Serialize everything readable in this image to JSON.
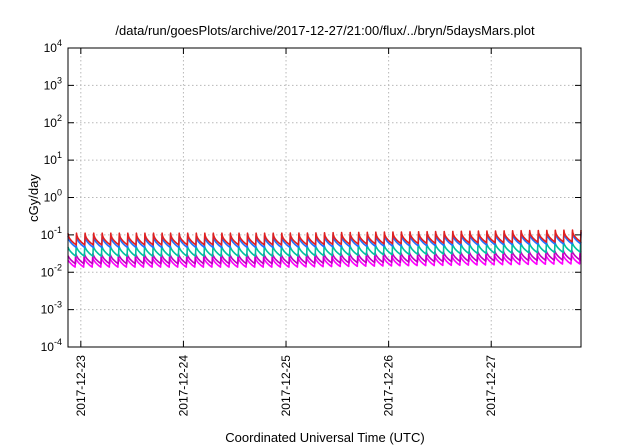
{
  "chart_data": {
    "type": "line",
    "title": "/data/run/goesPlots/archive/2017-12-27/21:00/flux/../bryn/5daysMars.plot",
    "xlabel": "Coordinated Universal Time (UTC)",
    "ylabel": "cGy/day",
    "yscale": "log",
    "ylim": [
      0.0001,
      10000
    ],
    "xlim": [
      "2017-12-22T21:00",
      "2017-12-27T21:00"
    ],
    "grid": true,
    "legend": "none",
    "y_ticks": [
      {
        "base": "10",
        "exp": "4",
        "value": 10000
      },
      {
        "base": "10",
        "exp": "3",
        "value": 1000
      },
      {
        "base": "10",
        "exp": "2",
        "value": 100
      },
      {
        "base": "10",
        "exp": "1",
        "value": 10
      },
      {
        "base": "10",
        "exp": "0",
        "value": 1
      },
      {
        "base": "10",
        "exp": "-1",
        "value": 0.1
      },
      {
        "base": "10",
        "exp": "-2",
        "value": 0.01
      },
      {
        "base": "10",
        "exp": "-3",
        "value": 0.001
      },
      {
        "base": "10",
        "exp": "-4",
        "value": 0.0001
      }
    ],
    "x_ticks": [
      {
        "label": "2017-12-23",
        "value": "2017-12-23T00:00"
      },
      {
        "label": "2017-12-24",
        "value": "2017-12-24T00:00"
      },
      {
        "label": "2017-12-25",
        "value": "2017-12-25T00:00"
      },
      {
        "label": "2017-12-26",
        "value": "2017-12-26T00:00"
      },
      {
        "label": "2017-12-27",
        "value": "2017-12-27T00:00"
      }
    ],
    "series": [
      {
        "color": "#ff00ff",
        "values": [
          {
            "x": "2017-12-22T21:00",
            "y": 0.018
          },
          {
            "x": "2017-12-25T00:00",
            "y": 0.018
          },
          {
            "x": "2017-12-27T21:00",
            "y": 0.022
          }
        ]
      },
      {
        "color": "#c000c0",
        "values": [
          {
            "x": "2017-12-22T21:00",
            "y": 0.022
          },
          {
            "x": "2017-12-25T00:00",
            "y": 0.022
          },
          {
            "x": "2017-12-27T21:00",
            "y": 0.028
          }
        ]
      },
      {
        "color": "#00c0a0",
        "values": [
          {
            "x": "2017-12-22T21:00",
            "y": 0.035
          },
          {
            "x": "2017-12-25T00:00",
            "y": 0.035
          },
          {
            "x": "2017-12-27T21:00",
            "y": 0.045
          }
        ]
      },
      {
        "color": "#2070ff",
        "values": [
          {
            "x": "2017-12-22T21:00",
            "y": 0.06
          },
          {
            "x": "2017-12-25T00:00",
            "y": 0.06
          },
          {
            "x": "2017-12-27T21:00",
            "y": 0.075
          }
        ]
      },
      {
        "color": "#e02020",
        "values": [
          {
            "x": "2017-12-22T21:00",
            "y": 0.07
          },
          {
            "x": "2017-12-25T00:00",
            "y": 0.07
          },
          {
            "x": "2017-12-27T21:00",
            "y": 0.085
          }
        ]
      }
    ]
  }
}
